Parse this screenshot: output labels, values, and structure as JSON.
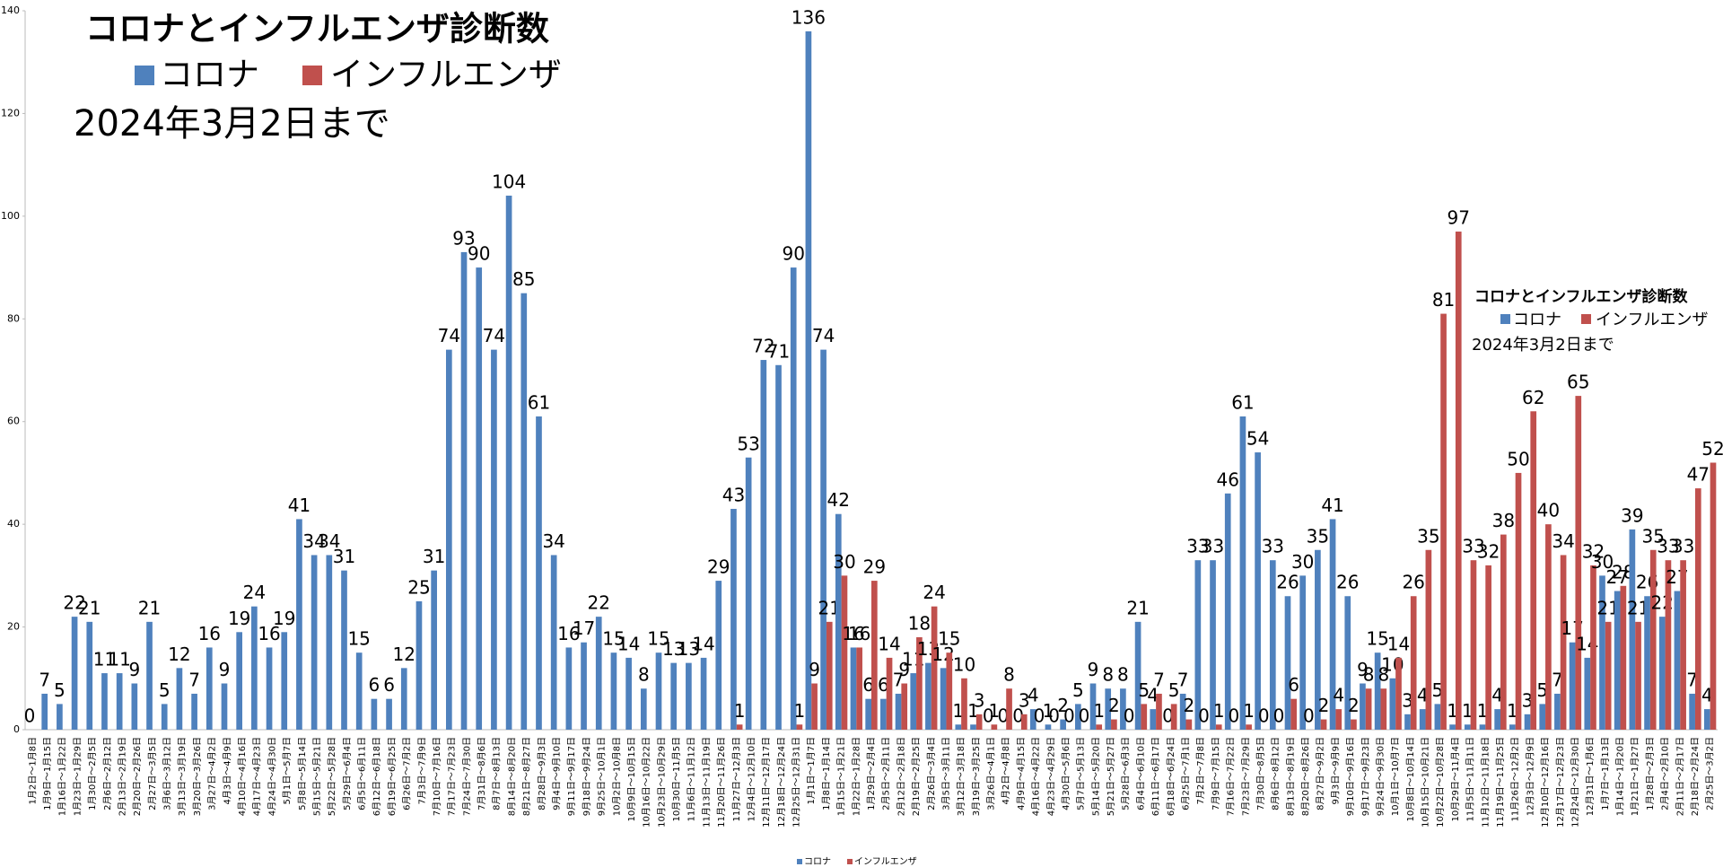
{
  "chart_data": {
    "type": "bar",
    "title": "コロナとインフルエンザ診断数",
    "subtitle": "2024年3月2日まで",
    "categories": [
      "1月2日～1月8日",
      "1月9日～1月15日",
      "1月16日～1月22日",
      "1月23日～1月29日",
      "1月30日～2月5日",
      "2月6日～2月12日",
      "2月13日～2月19日",
      "2月20日～2月26日",
      "2月27日～3月5日",
      "3月6日～3月12日",
      "3月13日～3月19日",
      "3月20日～3月26日",
      "3月27日～4月2日",
      "4月3日～4月9日",
      "4月10日～4月16日",
      "4月17日～4月23日",
      "4月24日～4月30日",
      "5月1日～5月7日",
      "5月8日～5月14日",
      "5月15日～5月21日",
      "5月22日～5月28日",
      "5月29日～6月4日",
      "6月5日～6月11日",
      "6月12日～6月18日",
      "6月19日～6月25日",
      "6月26日～7月2日",
      "7月3日～7月9日",
      "7月10日～7月16日",
      "7月17日～7月23日",
      "7月24日～7月30日",
      "7月31日～8月6日",
      "8月7日～8月13日",
      "8月14日～8月20日",
      "8月21日～8月27日",
      "8月28日～9月3日",
      "9月4日～9月10日",
      "9月11日～9月17日",
      "9月18日～9月24日",
      "9月25日～10月1日",
      "10月2日～10月8日",
      "10月9日～10月15日",
      "10月16日～10月22日",
      "10月23日～10月29日",
      "10月30日～11月5日",
      "11月6日～11月12日",
      "11月13日～11月19日",
      "11月20日～11月26日",
      "11月27日～12月3日",
      "12月4日～12月10日",
      "12月11日～12月17日",
      "12月18日～12月24日",
      "12月25日～12月31日",
      "1月1日～1月7日",
      "1月8日～1月14日",
      "1月15日～1月21日",
      "1月22日～1月28日",
      "1月29日～2月4日",
      "2月5日～2月11日",
      "2月12日～2月18日",
      "2月19日～2月25日",
      "2月26日～3月4日",
      "3月5日～3月11日",
      "3月12日～3月18日",
      "3月19日～3月25日",
      "3月26日～4月1日",
      "4月2日～4月8日",
      "4月9日～4月15日",
      "4月16日～4月22日",
      "4月23日～4月29日",
      "4月30日～5月6日",
      "5月7日～5月13日",
      "5月14日～5月20日",
      "5月21日～5月27日",
      "5月28日～6月3日",
      "6月4日～6月10日",
      "6月11日～6月17日",
      "6月18日～6月24日",
      "6月25日～7月1日",
      "7月2日～7月8日",
      "7月9日～7月15日",
      "7月16日～7月22日",
      "7月23日～7月29日",
      "7月30日～8月5日",
      "8月6日～8月12日",
      "8月13日～8月19日",
      "8月20日～8月26日",
      "8月27日～9月2日",
      "9月3日～9月9日",
      "9月10日～9月16日",
      "9月17日～9月23日",
      "9月24日～9月30日",
      "10月1日～10月7日",
      "10月8日～10月14日",
      "10月15日～10月21日",
      "10月22日～10月28日",
      "10月29日～11月4日",
      "11月5日～11月11日",
      "11月12日～11月18日",
      "11月19日～11月25日",
      "11月26日～12月2日",
      "12月3日～12月9日",
      "12月10日～12月16日",
      "12月17日～12月23日",
      "12月24日～12月30日",
      "12月31日～1月6日",
      "1月7日～1月13日",
      "1月14日～1月20日",
      "1月21日～1月27日",
      "1月28日～2月3日",
      "2月4日～2月10日",
      "2月11日～2月17日",
      "2月18日～2月24日",
      "2月25日～3月2日"
    ],
    "series": [
      {
        "name": "コロナ",
        "color": "#4f81bd",
        "values": [
          0,
          7,
          5,
          22,
          21,
          11,
          11,
          9,
          21,
          5,
          12,
          7,
          16,
          9,
          19,
          24,
          16,
          19,
          41,
          34,
          34,
          31,
          15,
          6,
          6,
          12,
          25,
          31,
          74,
          93,
          90,
          74,
          104,
          85,
          61,
          34,
          16,
          17,
          22,
          15,
          14,
          8,
          15,
          13,
          13,
          14,
          29,
          43,
          53,
          72,
          71,
          90,
          136,
          74,
          42,
          16,
          6,
          6,
          7,
          11,
          13,
          12,
          1,
          1,
          0,
          0,
          0,
          4,
          1,
          2,
          5,
          9,
          8,
          8,
          21,
          4,
          0,
          7,
          33,
          33,
          46,
          61,
          54,
          33,
          26,
          30,
          35,
          41,
          26,
          9,
          15,
          10,
          3,
          4,
          5,
          1,
          1,
          1,
          4,
          1,
          3,
          5,
          7,
          17,
          14,
          30,
          27,
          39,
          26,
          22,
          27,
          7,
          4
        ]
      },
      {
        "name": "インフルエンザ",
        "color": "#c0504d",
        "values": [
          null,
          null,
          null,
          null,
          null,
          null,
          null,
          null,
          null,
          null,
          null,
          null,
          null,
          null,
          null,
          null,
          null,
          null,
          null,
          null,
          null,
          null,
          null,
          null,
          null,
          null,
          null,
          null,
          null,
          null,
          null,
          null,
          null,
          null,
          null,
          null,
          null,
          null,
          null,
          null,
          null,
          null,
          null,
          null,
          null,
          null,
          null,
          1,
          null,
          null,
          null,
          1,
          9,
          21,
          30,
          16,
          29,
          14,
          9,
          18,
          24,
          15,
          10,
          3,
          1,
          8,
          3,
          0,
          0,
          0,
          0,
          1,
          2,
          0,
          5,
          7,
          5,
          2,
          0,
          1,
          0,
          1,
          0,
          0,
          6,
          0,
          2,
          4,
          2,
          8,
          8,
          14,
          26,
          35,
          81,
          97,
          33,
          32,
          38,
          50,
          62,
          40,
          34,
          65,
          32,
          21,
          28,
          21,
          35,
          33,
          33,
          47,
          52
        ]
      }
    ],
    "ylim": [
      0,
      140
    ],
    "yticks": [
      0,
      20,
      40,
      60,
      80,
      100,
      120,
      140
    ]
  }
}
